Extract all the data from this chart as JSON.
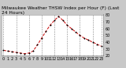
{
  "title": "Milwaukee Weather THSW Index per Hour (F) (Last 24 Hours)",
  "x_values": [
    0,
    1,
    2,
    3,
    4,
    5,
    6,
    7,
    8,
    9,
    10,
    11,
    12,
    13,
    14,
    15,
    16,
    17,
    18,
    19,
    20,
    21,
    22,
    23
  ],
  "y_values": [
    28,
    27,
    26,
    25,
    24,
    23,
    24,
    27,
    36,
    46,
    56,
    65,
    72,
    78,
    72,
    65,
    60,
    55,
    50,
    46,
    43,
    40,
    37,
    34
  ],
  "y_min": 20,
  "y_max": 80,
  "y_ticks": [
    20,
    30,
    40,
    50,
    60,
    70,
    80
  ],
  "line_color": "#cc0000",
  "marker_color": "#000000",
  "background_color": "#c8c8c8",
  "plot_bg_color": "#ffffff",
  "grid_color": "#888888",
  "title_fontsize": 4.2,
  "tick_fontsize": 3.5,
  "x_tick_labels": [
    "0",
    "1",
    "2",
    "3",
    "4",
    "5",
    "6",
    "7",
    "8",
    "9",
    "10",
    "11",
    "12",
    "13",
    "14",
    "15",
    "16",
    "17",
    "18",
    "19",
    "20",
    "21",
    "22",
    "23"
  ],
  "y_tick_labels": [
    "20",
    "30",
    "40",
    "50",
    "60",
    "70",
    "80"
  ],
  "grid_x_positions": [
    0,
    3,
    6,
    9,
    12,
    15,
    18,
    21,
    23
  ]
}
